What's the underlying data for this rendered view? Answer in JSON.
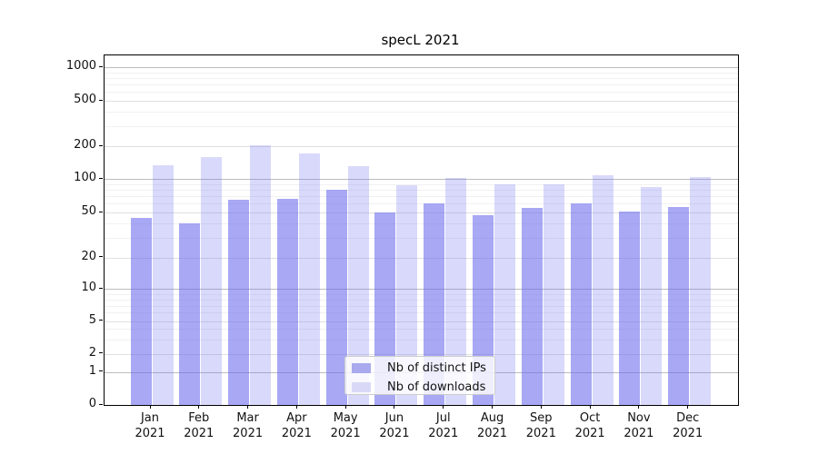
{
  "chart_data": {
    "type": "bar",
    "title": "specL 2021",
    "categories": [
      "Jan",
      "Feb",
      "Mar",
      "Apr",
      "May",
      "Jun",
      "Jul",
      "Aug",
      "Sep",
      "Oct",
      "Nov",
      "Dec"
    ],
    "year_label": "2021",
    "series": [
      {
        "name": "Nb of distinct IPs",
        "values": [
          45,
          40,
          65,
          67,
          80,
          50,
          60,
          48,
          55,
          60,
          51,
          56
        ],
        "fill": "rgba(102,102,238,0.57)",
        "swatch_color": "#a9a9ee"
      },
      {
        "name": "Nb of downloads",
        "values": [
          133,
          160,
          205,
          170,
          131,
          87,
          102,
          89,
          90,
          107,
          84,
          103
        ],
        "fill": "rgba(102,102,238,0.25)",
        "swatch_color": "#d9d9f7"
      }
    ],
    "yscale": "symlog",
    "yticks": [
      0,
      1,
      2,
      5,
      10,
      20,
      50,
      100,
      200,
      500,
      1000
    ],
    "ytick_labels": [
      "0",
      "1",
      "2",
      "5",
      "10",
      "20",
      "50",
      "100",
      "200",
      "500",
      "1000"
    ],
    "minor_gridline_values": [
      3,
      4,
      6,
      7,
      8,
      9,
      30,
      40,
      60,
      70,
      80,
      90,
      300,
      400,
      600,
      700,
      800,
      900
    ],
    "ylim": [
      0,
      1300
    ],
    "xlabel": "",
    "ylabel": "",
    "grid": true,
    "legend_position": "lower center",
    "colors": {
      "grid_major": "#bdbdbd",
      "grid_mid": "#e0e0e0",
      "grid_minor": "#f1f1f1",
      "spine": "#000000",
      "text": "#111111",
      "background": "#ffffff"
    }
  }
}
